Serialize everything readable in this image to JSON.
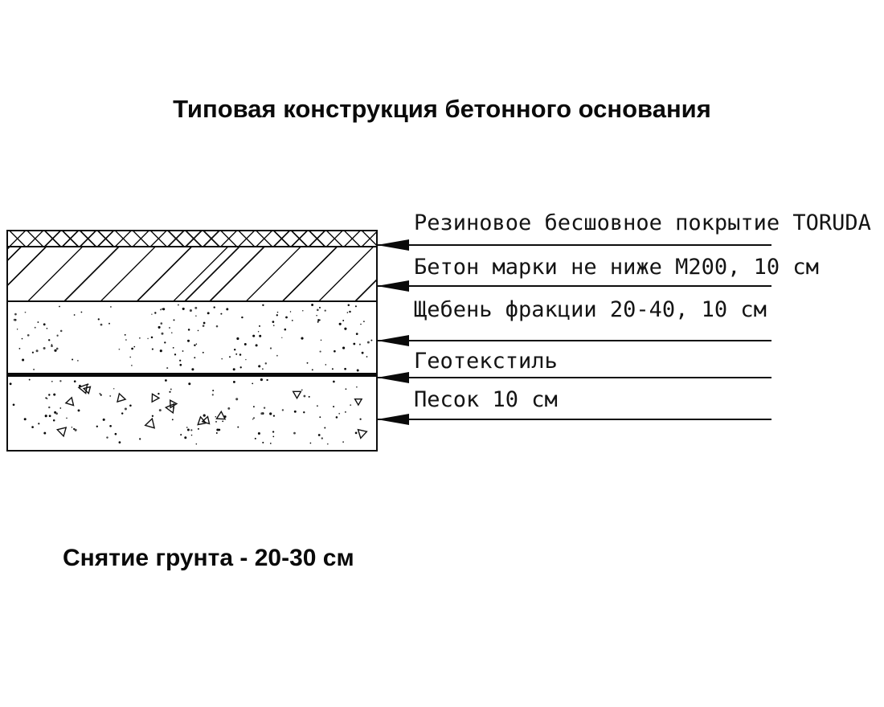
{
  "title": "Типовая конструкция бетонного основания",
  "footer_note": "Снятие грунта - 20-30 см",
  "layers": [
    {
      "label": "Резиновое бесшовное покрытие TORUDA",
      "pattern": "crosshatch"
    },
    {
      "label": "Бетон марки не ниже М200, 10 см",
      "pattern": "diagonal-hatch"
    },
    {
      "label": "Щебень фракции 20-40, 10 см",
      "pattern": "stipple-dots"
    },
    {
      "label": "Геотекстиль",
      "pattern": "thick-solid-line"
    },
    {
      "label": "Песок 10 см",
      "pattern": "dots-and-triangles"
    }
  ],
  "colors": {
    "ink": "#0a0a0a",
    "background": "#ffffff"
  }
}
